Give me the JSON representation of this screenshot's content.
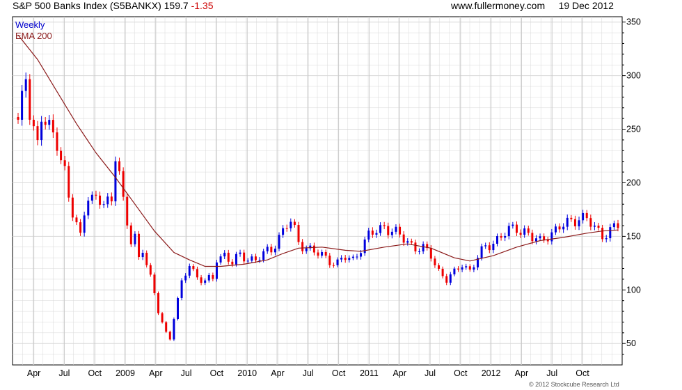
{
  "header": {
    "index_name": "S&P 500 Banks Index (S5BANKX)",
    "last_price": "159.7",
    "change": "-1.35",
    "site": "www.fullermoney.com",
    "date": "19 Dec 2012"
  },
  "legend": {
    "period": "Weekly",
    "ema": "EMA 200"
  },
  "copyright": "© 2012 Stockcube Research Ltd",
  "colors": {
    "up": "#0000dd",
    "down": "#ee0000",
    "ema": "#8b1a1a",
    "grid": "#d8d8d8",
    "period_label": "#0000cc"
  },
  "chart_data": {
    "type": "candlestick",
    "period": "weekly",
    "y_axis": {
      "ticks": [
        50,
        100,
        150,
        200,
        250,
        300,
        350
      ],
      "ylim": [
        30,
        355
      ],
      "side": "right"
    },
    "x_axis": {
      "ticks": [
        "Apr",
        "Jul",
        "Oct",
        "2009",
        "Apr",
        "Jul",
        "Oct",
        "2010",
        "Apr",
        "Jul",
        "Oct",
        "2011",
        "Apr",
        "Jul",
        "Oct",
        "2012",
        "Apr",
        "Jul",
        "Oct"
      ]
    },
    "close_path": [
      [
        0,
        255
      ],
      [
        1,
        275
      ],
      [
        2,
        300
      ],
      [
        3,
        270
      ],
      [
        5,
        235
      ],
      [
        6,
        260
      ],
      [
        8,
        250
      ],
      [
        10,
        240
      ],
      [
        12,
        210
      ],
      [
        13,
        185
      ],
      [
        14,
        170
      ],
      [
        16,
        150
      ],
      [
        17,
        175
      ],
      [
        18,
        190
      ],
      [
        19,
        185
      ],
      [
        22,
        180
      ],
      [
        24,
        185
      ],
      [
        25,
        230
      ],
      [
        26,
        210
      ],
      [
        27,
        180
      ],
      [
        28,
        160
      ],
      [
        29,
        145
      ],
      [
        30,
        150
      ],
      [
        31,
        130
      ],
      [
        32,
        140
      ],
      [
        34,
        110
      ],
      [
        35,
        95
      ],
      [
        36,
        80
      ],
      [
        37,
        70
      ],
      [
        38,
        60
      ],
      [
        39,
        55
      ],
      [
        40,
        75
      ],
      [
        41,
        90
      ],
      [
        42,
        105
      ],
      [
        43,
        115
      ],
      [
        44,
        125
      ],
      [
        45,
        118
      ],
      [
        46,
        112
      ],
      [
        48,
        108
      ],
      [
        50,
        110
      ],
      [
        51,
        130
      ],
      [
        53,
        133
      ],
      [
        55,
        125
      ],
      [
        57,
        132
      ],
      [
        59,
        130
      ],
      [
        61,
        128
      ],
      [
        63,
        133
      ],
      [
        65,
        138
      ],
      [
        67,
        150
      ],
      [
        69,
        160
      ],
      [
        70,
        163
      ],
      [
        71,
        155
      ],
      [
        72,
        145
      ],
      [
        74,
        140
      ],
      [
        76,
        135
      ],
      [
        78,
        132
      ],
      [
        80,
        128
      ],
      [
        82,
        125
      ],
      [
        84,
        130
      ],
      [
        86,
        128
      ],
      [
        88,
        140
      ],
      [
        90,
        150
      ],
      [
        92,
        155
      ],
      [
        94,
        160
      ],
      [
        96,
        155
      ],
      [
        98,
        150
      ],
      [
        100,
        145
      ],
      [
        102,
        140
      ],
      [
        104,
        138
      ],
      [
        106,
        132
      ],
      [
        108,
        118
      ],
      [
        110,
        110
      ],
      [
        112,
        115
      ],
      [
        114,
        125
      ],
      [
        116,
        118
      ],
      [
        118,
        130
      ],
      [
        120,
        140
      ],
      [
        122,
        145
      ],
      [
        124,
        150
      ],
      [
        126,
        155
      ],
      [
        128,
        158
      ],
      [
        130,
        155
      ],
      [
        132,
        148
      ],
      [
        134,
        145
      ],
      [
        136,
        152
      ],
      [
        138,
        155
      ],
      [
        140,
        160
      ],
      [
        142,
        165
      ],
      [
        144,
        168
      ],
      [
        146,
        165
      ],
      [
        148,
        158
      ],
      [
        150,
        152
      ],
      [
        152,
        155
      ],
      [
        154,
        159.7
      ]
    ],
    "ema_200": [
      [
        0,
        338
      ],
      [
        5,
        315
      ],
      [
        10,
        285
      ],
      [
        15,
        255
      ],
      [
        20,
        228
      ],
      [
        25,
        205
      ],
      [
        30,
        180
      ],
      [
        35,
        155
      ],
      [
        40,
        135
      ],
      [
        44,
        128
      ],
      [
        48,
        122
      ],
      [
        52,
        122
      ],
      [
        58,
        124
      ],
      [
        64,
        128
      ],
      [
        68,
        134
      ],
      [
        72,
        139
      ],
      [
        78,
        140
      ],
      [
        84,
        137
      ],
      [
        88,
        136
      ],
      [
        94,
        140
      ],
      [
        100,
        143
      ],
      [
        106,
        139
      ],
      [
        112,
        130
      ],
      [
        116,
        127
      ],
      [
        122,
        132
      ],
      [
        128,
        140
      ],
      [
        134,
        146
      ],
      [
        140,
        149
      ],
      [
        146,
        153
      ],
      [
        150,
        155
      ],
      [
        154,
        156
      ]
    ]
  }
}
